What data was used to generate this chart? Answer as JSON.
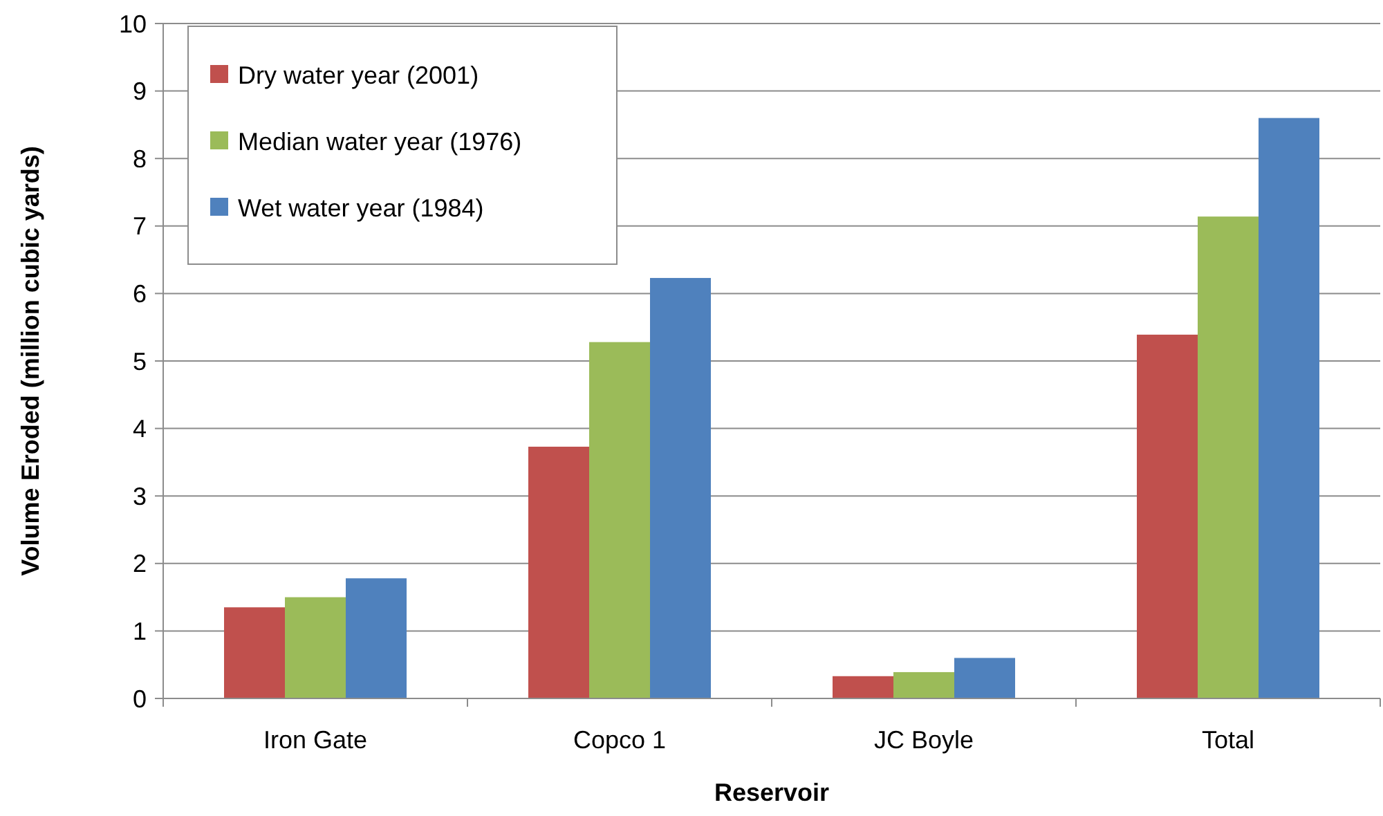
{
  "chart_data": {
    "type": "bar",
    "xlabel": "Reservoir",
    "ylabel": "Volume Eroded (million cubic yards)",
    "categories": [
      "Iron Gate",
      "Copco 1",
      "JC Boyle",
      "Total"
    ],
    "series": [
      {
        "name": "Dry water year (2001)",
        "color": "#c0504d",
        "values": [
          1.35,
          3.73,
          0.33,
          5.39
        ]
      },
      {
        "name": "Median water year (1976)",
        "color": "#9bbb59",
        "values": [
          1.5,
          5.28,
          0.39,
          7.14
        ]
      },
      {
        "name": "Wet water year (1984)",
        "color": "#4f81bd",
        "values": [
          1.78,
          6.23,
          0.6,
          8.6
        ]
      }
    ],
    "ylim": [
      0,
      10
    ],
    "yticks": [
      0,
      1,
      2,
      3,
      4,
      5,
      6,
      7,
      8,
      9,
      10
    ],
    "grid": "y",
    "legend": "top left"
  }
}
